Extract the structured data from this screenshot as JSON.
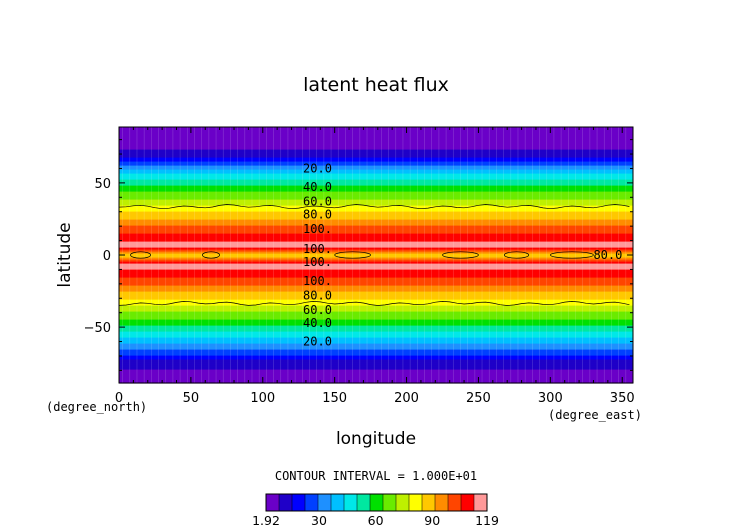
{
  "chart_data": {
    "type": "heatmap",
    "title": "latent heat flux",
    "xlabel": "longitude",
    "ylabel": "latitude",
    "x_unit_label": "(degree_east)",
    "y_unit_label": "(degree_north)",
    "xlim": [
      0,
      357.5
    ],
    "ylim": [
      -88.75,
      88.75
    ],
    "x_ticks": [
      0,
      50,
      100,
      150,
      200,
      250,
      300,
      350
    ],
    "y_ticks": [
      -50,
      0,
      50
    ],
    "x_tick_labels": [
      "0",
      "50",
      "100",
      "150",
      "200",
      "250",
      "300",
      "350"
    ],
    "y_tick_labels": [
      "−50",
      "0",
      "50"
    ],
    "contour_interval_text": "CONTOUR INTERVAL = 1.000E+01",
    "zonal_profile": {
      "latitude": [
        -88.75,
        -80,
        -75,
        -70,
        -65,
        -60,
        -55,
        -50,
        -45,
        -40,
        -35,
        -30,
        -25,
        -20,
        -15,
        -10,
        -7,
        -5,
        -3,
        -1,
        0,
        1,
        3,
        5,
        7,
        10,
        15,
        20,
        25,
        30,
        35,
        40,
        45,
        50,
        55,
        60,
        65,
        70,
        75,
        80,
        88.75
      ],
      "value": [
        5,
        8,
        12,
        20,
        30,
        38,
        46,
        54,
        62,
        70,
        78,
        85,
        92,
        100,
        106,
        112,
        115,
        112,
        100,
        92,
        85,
        92,
        100,
        112,
        116,
        112,
        106,
        100,
        92,
        85,
        78,
        70,
        62,
        54,
        46,
        36,
        22,
        12,
        8,
        6,
        5
      ]
    },
    "contour_labels": [
      {
        "text": "20.0",
        "lon": 128,
        "lat": 60
      },
      {
        "text": "40.0",
        "lon": 128,
        "lat": 47
      },
      {
        "text": "60.0",
        "lon": 128,
        "lat": 37
      },
      {
        "text": "80.0",
        "lon": 128,
        "lat": 28
      },
      {
        "text": "100.",
        "lon": 128,
        "lat": 18
      },
      {
        "text": "100.",
        "lon": 128,
        "lat": 4
      },
      {
        "text": "100.",
        "lon": 128,
        "lat": -5
      },
      {
        "text": "80.0",
        "lon": 330,
        "lat": 0
      },
      {
        "text": "100.",
        "lon": 128,
        "lat": -18
      },
      {
        "text": "80.0",
        "lon": 128,
        "lat": -28
      },
      {
        "text": "60.0",
        "lon": 128,
        "lat": -38
      },
      {
        "text": "40.0",
        "lon": 128,
        "lat": -47
      },
      {
        "text": "20.0",
        "lon": 128,
        "lat": -60
      }
    ],
    "colorbar": {
      "colors": [
        "#6a00c8",
        "#1f00c8",
        "#0000ff",
        "#0040ff",
        "#1e90ff",
        "#00c0ff",
        "#00e8e8",
        "#00e8a0",
        "#00e000",
        "#6aeb00",
        "#bef000",
        "#ffff00",
        "#ffc800",
        "#ff8c00",
        "#ff4500",
        "#ff0000",
        "#ff9999"
      ],
      "tick_values": [
        1.92,
        30,
        60,
        90,
        119
      ],
      "tick_labels": [
        "1.92",
        "30",
        "60",
        "90",
        "119"
      ],
      "range": [
        1.92,
        119
      ]
    },
    "grid": false,
    "legend": "colorbar bottom-center"
  }
}
